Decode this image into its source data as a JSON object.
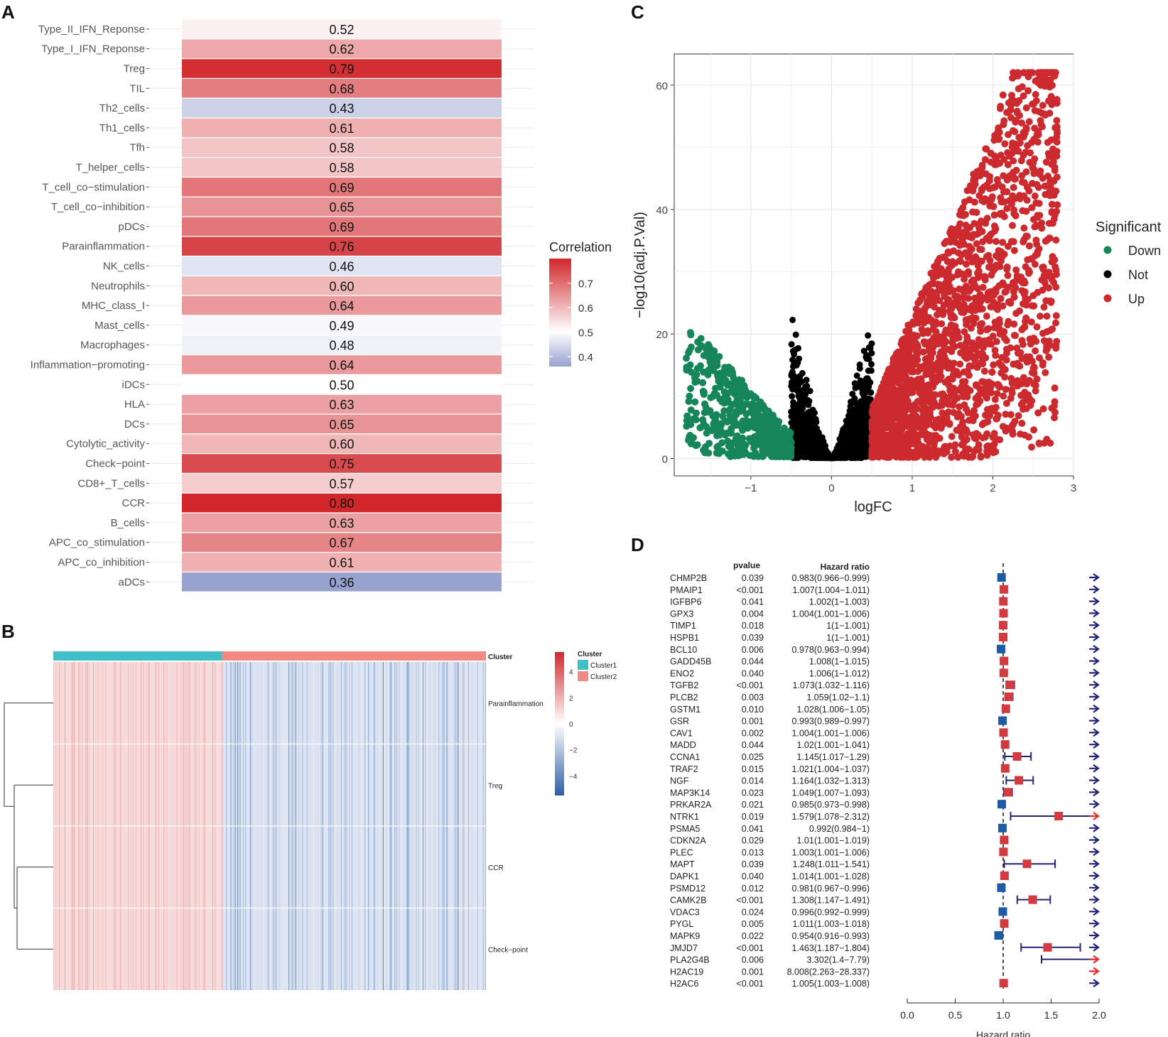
{
  "panels": {
    "a": {
      "letter": "A"
    },
    "b": {
      "letter": "B"
    },
    "c": {
      "letter": "C"
    },
    "d": {
      "letter": "D"
    }
  },
  "chart_data": [
    {
      "id": "heatmap_correlation",
      "type": "heatmap",
      "categories": [
        "Type_II_IFN_Reponse",
        "Type_I_IFN_Reponse",
        "Treg",
        "TIL",
        "Th2_cells",
        "Th1_cells",
        "Tfh",
        "T_helper_cells",
        "T_cell_co−stimulation",
        "T_cell_co−inhibition",
        "pDCs",
        "Parainflammation",
        "NK_cells",
        "Neutrophils",
        "MHC_class_I",
        "Mast_cells",
        "Macrophages",
        "Inflammation−promoting",
        "iDCs",
        "HLA",
        "DCs",
        "Cytolytic_activity",
        "Check−point",
        "CD8+_T_cells",
        "CCR",
        "B_cells",
        "APC_co_stimulation",
        "APC_co_inhibition",
        "aDCs"
      ],
      "values": [
        0.52,
        0.62,
        0.79,
        0.68,
        0.43,
        0.61,
        0.58,
        0.58,
        0.69,
        0.65,
        0.69,
        0.76,
        0.46,
        0.6,
        0.64,
        0.49,
        0.48,
        0.64,
        0.5,
        0.63,
        0.65,
        0.6,
        0.75,
        0.57,
        0.8,
        0.63,
        0.67,
        0.61,
        0.36
      ],
      "value_labels": [
        "0.52",
        "0.62",
        "0.79",
        "0.68",
        "0.43",
        "0.61",
        "0.58",
        "0.58",
        "0.69",
        "0.65",
        "0.69",
        "0.76",
        "0.46",
        "0.60",
        "0.64",
        "0.49",
        "0.48",
        "0.64",
        "0.50",
        "0.63",
        "0.65",
        "0.60",
        "0.75",
        "0.57",
        "0.80",
        "0.63",
        "0.67",
        "0.61",
        "0.36"
      ],
      "legend": {
        "title": "Correlation",
        "ticks": [
          "0.7",
          "0.6",
          "0.5",
          "0.4"
        ],
        "tick_values": [
          0.7,
          0.6,
          0.5,
          0.4
        ],
        "range": [
          0.36,
          0.8
        ]
      },
      "colors": {
        "low": "#97a2cf",
        "mid": "#ffffff",
        "high": "#d1272b"
      }
    },
    {
      "id": "cluster_heatmap",
      "type": "heatmap",
      "rows": [
        "Parainflammation",
        "Treg",
        "CCR",
        "Check−point"
      ],
      "annotation_label": "Cluster",
      "legend_title": "Cluster",
      "clusters": [
        {
          "name": "Cluster1",
          "color": "#3fbfc7"
        },
        {
          "name": "Cluster2",
          "color": "#f08a82"
        }
      ],
      "scale_ticks": [
        "4",
        "2",
        "0",
        "−2",
        "−4"
      ],
      "scale_values": [
        4,
        2,
        0,
        -2,
        -4
      ],
      "cluster1_fraction": 0.39
    },
    {
      "id": "volcano",
      "type": "scatter",
      "xlabel": "logFC",
      "ylabel": "−log10(adj.P.Val)",
      "xlim": [
        -1.95,
        3.0
      ],
      "ylim": [
        -2.8,
        65
      ],
      "xticks": [
        -1,
        0,
        1,
        2,
        3
      ],
      "xtick_labels": [
        "−1",
        "0",
        "1",
        "2",
        "3"
      ],
      "yticks": [
        0,
        20,
        40,
        60
      ],
      "ytick_labels": [
        "0",
        "20",
        "40",
        "60"
      ],
      "legend": {
        "title": "Significant",
        "entries": [
          "Down",
          "Not",
          "Up"
        ]
      },
      "colors": {
        "Down": "#16865a",
        "Not": "#000000",
        "Up": "#cc2a2f"
      },
      "series": [
        {
          "name": "Down",
          "approx_count": 600,
          "x_range": [
            -1.8,
            -0.5
          ],
          "y_range": [
            0,
            20
          ]
        },
        {
          "name": "Not",
          "approx_count": 1500,
          "x_range": [
            -0.5,
            0.5
          ],
          "y_range": [
            0,
            25
          ]
        },
        {
          "name": "Up",
          "approx_count": 2200,
          "x_range": [
            0.5,
            2.8
          ],
          "y_range": [
            0,
            62
          ]
        }
      ]
    },
    {
      "id": "forest_plot",
      "type": "scatter",
      "xlabel": "Hazard ratio",
      "xlim": [
        0,
        2.0
      ],
      "xticks": [
        0,
        0.5,
        1.0,
        1.5,
        2.0
      ],
      "xtick_labels": [
        "0.0",
        "0.5",
        "1.0",
        "1.5",
        "2.0"
      ],
      "reference_line": 1.0,
      "col_headers": {
        "pvalue": "pvalue",
        "hr": "Hazard ratio"
      },
      "colors": {
        "risk": "#d23a3f",
        "protective": "#1f5aa6",
        "ci": "#23237a",
        "clip": "#e82a2a"
      },
      "rows": [
        {
          "gene": "CHMP2B",
          "p": "0.039",
          "hr_text": "0.983(0.966−0.999)",
          "hr": 0.983,
          "lo": 0.966,
          "hi": 0.999
        },
        {
          "gene": "PMAIP1",
          "p": "<0.001",
          "hr_text": "1.007(1.004−1.011)",
          "hr": 1.007,
          "lo": 1.004,
          "hi": 1.011
        },
        {
          "gene": "IGFBP6",
          "p": "0.041",
          "hr_text": "1.002(1−1.003)",
          "hr": 1.002,
          "lo": 1.0,
          "hi": 1.003
        },
        {
          "gene": "GPX3",
          "p": "0.004",
          "hr_text": "1.004(1.001−1.006)",
          "hr": 1.004,
          "lo": 1.001,
          "hi": 1.006
        },
        {
          "gene": "TIMP1",
          "p": "0.018",
          "hr_text": "1(1−1.001)",
          "hr": 1.0,
          "lo": 1.0,
          "hi": 1.001
        },
        {
          "gene": "HSPB1",
          "p": "0.039",
          "hr_text": "1(1−1.001)",
          "hr": 1.0,
          "lo": 1.0,
          "hi": 1.001
        },
        {
          "gene": "BCL10",
          "p": "0.006",
          "hr_text": "0.978(0.963−0.994)",
          "hr": 0.978,
          "lo": 0.963,
          "hi": 0.994
        },
        {
          "gene": "GADD45B",
          "p": "0.044",
          "hr_text": "1.008(1−1.015)",
          "hr": 1.008,
          "lo": 1.0,
          "hi": 1.015
        },
        {
          "gene": "ENO2",
          "p": "0.040",
          "hr_text": "1.006(1−1.012)",
          "hr": 1.006,
          "lo": 1.0,
          "hi": 1.012
        },
        {
          "gene": "TGFB2",
          "p": "<0.001",
          "hr_text": "1.073(1.032−1.116)",
          "hr": 1.073,
          "lo": 1.032,
          "hi": 1.116
        },
        {
          "gene": "PLCB2",
          "p": "0.003",
          "hr_text": "1.059(1.02−1.1)",
          "hr": 1.059,
          "lo": 1.02,
          "hi": 1.1
        },
        {
          "gene": "GSTM1",
          "p": "0.010",
          "hr_text": "1.028(1.006−1.05)",
          "hr": 1.028,
          "lo": 1.006,
          "hi": 1.05
        },
        {
          "gene": "GSR",
          "p": "0.001",
          "hr_text": "0.993(0.989−0.997)",
          "hr": 0.993,
          "lo": 0.989,
          "hi": 0.997
        },
        {
          "gene": "CAV1",
          "p": "0.002",
          "hr_text": "1.004(1.001−1.006)",
          "hr": 1.004,
          "lo": 1.001,
          "hi": 1.006
        },
        {
          "gene": "MADD",
          "p": "0.044",
          "hr_text": "1.02(1.001−1.041)",
          "hr": 1.02,
          "lo": 1.001,
          "hi": 1.041
        },
        {
          "gene": "CCNA1",
          "p": "0.025",
          "hr_text": "1.145(1.017−1.29)",
          "hr": 1.145,
          "lo": 1.017,
          "hi": 1.29
        },
        {
          "gene": "TRAF2",
          "p": "0.015",
          "hr_text": "1.021(1.004−1.037)",
          "hr": 1.021,
          "lo": 1.004,
          "hi": 1.037
        },
        {
          "gene": "NGF",
          "p": "0.014",
          "hr_text": "1.164(1.032−1.313)",
          "hr": 1.164,
          "lo": 1.032,
          "hi": 1.313
        },
        {
          "gene": "MAP3K14",
          "p": "0.023",
          "hr_text": "1.049(1.007−1.093)",
          "hr": 1.049,
          "lo": 1.007,
          "hi": 1.093
        },
        {
          "gene": "PRKAR2A",
          "p": "0.021",
          "hr_text": "0.985(0.973−0.998)",
          "hr": 0.985,
          "lo": 0.973,
          "hi": 0.998
        },
        {
          "gene": "NTRK1",
          "p": "0.019",
          "hr_text": "1.579(1.078−2.312)",
          "hr": 1.579,
          "lo": 1.078,
          "hi": 2.312
        },
        {
          "gene": "PSMA5",
          "p": "0.041",
          "hr_text": "0.992(0.984−1)",
          "hr": 0.992,
          "lo": 0.984,
          "hi": 1.0
        },
        {
          "gene": "CDKN2A",
          "p": "0.029",
          "hr_text": "1.01(1.001−1.019)",
          "hr": 1.01,
          "lo": 1.001,
          "hi": 1.019
        },
        {
          "gene": "PLEC",
          "p": "0.013",
          "hr_text": "1.003(1.001−1.006)",
          "hr": 1.003,
          "lo": 1.001,
          "hi": 1.006
        },
        {
          "gene": "MAPT",
          "p": "0.039",
          "hr_text": "1.248(1.011−1.541)",
          "hr": 1.248,
          "lo": 1.011,
          "hi": 1.541
        },
        {
          "gene": "DAPK1",
          "p": "0.040",
          "hr_text": "1.014(1.001−1.028)",
          "hr": 1.014,
          "lo": 1.001,
          "hi": 1.028
        },
        {
          "gene": "PSMD12",
          "p": "0.012",
          "hr_text": "0.981(0.967−0.996)",
          "hr": 0.981,
          "lo": 0.967,
          "hi": 0.996
        },
        {
          "gene": "CAMK2B",
          "p": "<0.001",
          "hr_text": "1.308(1.147−1.491)",
          "hr": 1.308,
          "lo": 1.147,
          "hi": 1.491
        },
        {
          "gene": "VDAC3",
          "p": "0.024",
          "hr_text": "0.996(0.992−0.999)",
          "hr": 0.996,
          "lo": 0.992,
          "hi": 0.999
        },
        {
          "gene": "PYGL",
          "p": "0.005",
          "hr_text": "1.011(1.003−1.018)",
          "hr": 1.011,
          "lo": 1.003,
          "hi": 1.018
        },
        {
          "gene": "MAPK9",
          "p": "0.022",
          "hr_text": "0.954(0.916−0.993)",
          "hr": 0.954,
          "lo": 0.916,
          "hi": 0.993
        },
        {
          "gene": "JMJD7",
          "p": "<0.001",
          "hr_text": "1.463(1.187−1.804)",
          "hr": 1.463,
          "lo": 1.187,
          "hi": 1.804
        },
        {
          "gene": "PLA2G4B",
          "p": "0.006",
          "hr_text": "3.302(1.4−7.79)",
          "hr": 3.302,
          "lo": 1.4,
          "hi": 7.79
        },
        {
          "gene": "H2AC19",
          "p": "0.001",
          "hr_text": "8.008(2.263−28.337)",
          "hr": 8.008,
          "lo": 2.263,
          "hi": 28.337
        },
        {
          "gene": "H2AC6",
          "p": "<0.001",
          "hr_text": "1.005(1.003−1.008)",
          "hr": 1.005,
          "lo": 1.003,
          "hi": 1.008
        }
      ]
    }
  ]
}
